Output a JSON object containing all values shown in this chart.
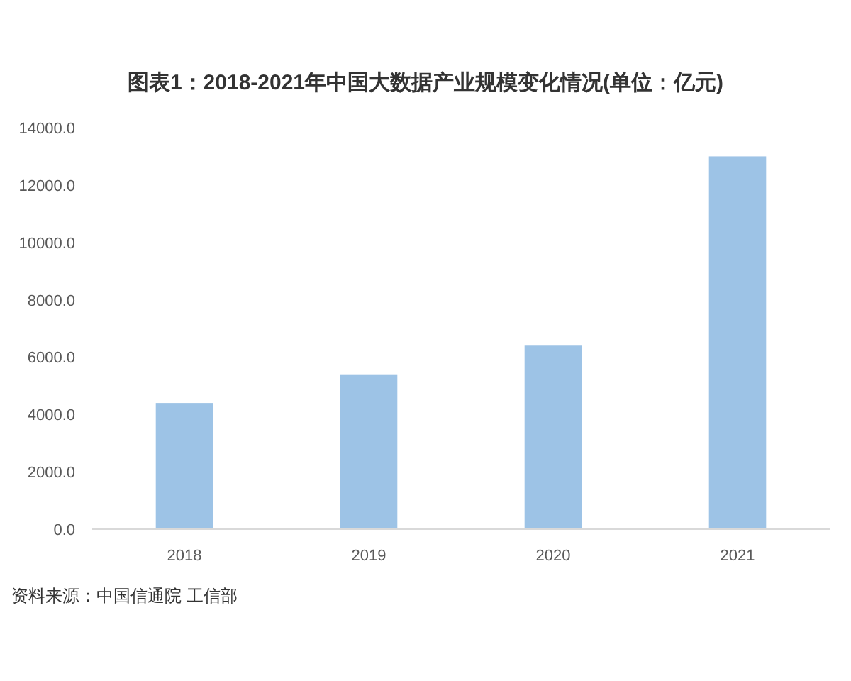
{
  "chart_data": {
    "type": "bar",
    "title": "图表1：2018-2021年中国大数据产业规模变化情况(单位：亿元)",
    "categories": [
      "2018",
      "2019",
      "2020",
      "2021"
    ],
    "values": [
      4400,
      5400,
      6400,
      13000
    ],
    "color": "#9dc3e6",
    "ylim": [
      0,
      14000
    ],
    "yticks": [
      {
        "value": 0,
        "label": "0.0"
      },
      {
        "value": 2000,
        "label": "2000.0"
      },
      {
        "value": 4000,
        "label": "4000.0"
      },
      {
        "value": 6000,
        "label": "6000.0"
      },
      {
        "value": 8000,
        "label": "8000.0"
      },
      {
        "value": 10000,
        "label": "10000.0"
      },
      {
        "value": 12000,
        "label": "12000.0"
      },
      {
        "value": 14000,
        "label": "14000.0"
      }
    ],
    "grid": false,
    "annotations": [
      "资料来源：中国信通院 工信部"
    ]
  }
}
